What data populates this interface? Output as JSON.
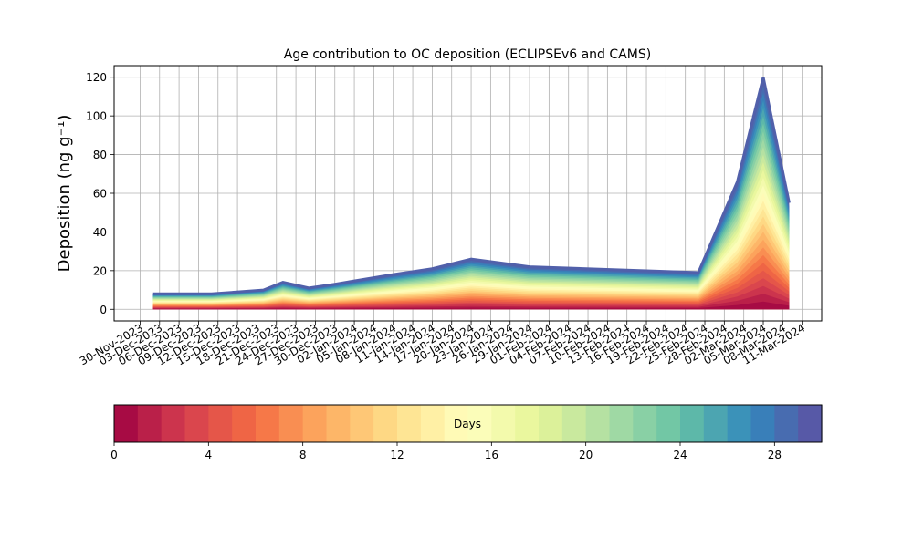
{
  "chart_data": {
    "type": "area",
    "title": "Age contribution to OC deposition (ECLIPSEv6 and CAMS)",
    "xlabel": "",
    "ylabel": "Deposition (ng g⁻¹)",
    "ylim": [
      -6,
      126
    ],
    "xlim": [
      "2023-11-26",
      "2024-03-14"
    ],
    "grid": true,
    "yticks": [
      0,
      20,
      40,
      60,
      80,
      100,
      120
    ],
    "xticks": [
      "30-Nov-2023",
      "03-Dec-2023",
      "06-Dec-2023",
      "09-Dec-2023",
      "12-Dec-2023",
      "15-Dec-2023",
      "18-Dec-2023",
      "21-Dec-2023",
      "24-Dec-2023",
      "27-Dec-2023",
      "30-Dec-2023",
      "02-Jan-2024",
      "05-Jan-2024",
      "08-Jan-2024",
      "11-Jan-2024",
      "14-Jan-2024",
      "17-Jan-2024",
      "20-Jan-2024",
      "23-Jan-2024",
      "26-Jan-2024",
      "29-Jan-2024",
      "01-Feb-2024",
      "04-Feb-2024",
      "07-Feb-2024",
      "10-Feb-2024",
      "13-Feb-2024",
      "16-Feb-2024",
      "19-Feb-2024",
      "22-Feb-2024",
      "25-Feb-2024",
      "28-Feb-2024",
      "02-Mar-2024",
      "05-Mar-2024",
      "08-Mar-2024",
      "11-Mar-2024"
    ],
    "x": [
      "2023-12-02",
      "2023-12-11",
      "2023-12-19",
      "2023-12-22",
      "2023-12-26",
      "2023-12-30",
      "2024-01-08",
      "2024-01-14",
      "2024-01-20",
      "2024-01-29",
      "2024-02-24",
      "2024-03-01",
      "2024-03-05",
      "2024-03-09"
    ],
    "total": [
      8,
      8,
      10,
      14,
      11,
      13,
      18,
      21,
      26,
      22,
      19,
      66,
      120,
      55
    ],
    "series_note": "stacked contributions by age (days 0-30)",
    "colorbar": {
      "label": "Days",
      "min": 0,
      "max": 30,
      "ticks": [
        0,
        4,
        8,
        12,
        16,
        20,
        24,
        28
      ],
      "levels": 30,
      "colormap": [
        "#9e0142",
        "#d53e4f",
        "#f46d43",
        "#fdae61",
        "#fee08b",
        "#ffffbf",
        "#e6f598",
        "#abdda4",
        "#66c2a5",
        "#3288bd",
        "#5e4fa2"
      ]
    }
  }
}
